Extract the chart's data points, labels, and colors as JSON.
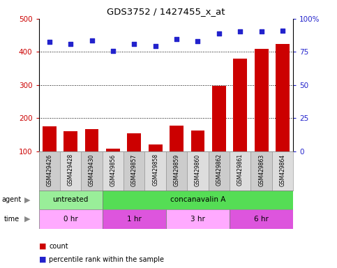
{
  "title": "GDS3752 / 1427455_x_at",
  "samples": [
    "GSM429426",
    "GSM429428",
    "GSM429430",
    "GSM429856",
    "GSM429857",
    "GSM429858",
    "GSM429859",
    "GSM429860",
    "GSM429862",
    "GSM429861",
    "GSM429863",
    "GSM429864"
  ],
  "counts": [
    175,
    160,
    168,
    108,
    155,
    122,
    178,
    163,
    298,
    380,
    410,
    425
  ],
  "percentile_ranks": [
    82.5,
    81.25,
    83.75,
    75.75,
    81.25,
    79.5,
    84.5,
    83.0,
    88.75,
    90.5,
    90.5,
    91.25
  ],
  "ylim_left": [
    100,
    500
  ],
  "ylim_right": [
    0,
    100
  ],
  "yticks_left": [
    100,
    200,
    300,
    400,
    500
  ],
  "yticks_right": [
    0,
    25,
    50,
    75,
    100
  ],
  "bar_color": "#cc0000",
  "scatter_color": "#2222cc",
  "agent_groups": [
    {
      "label": "untreated",
      "start": 0,
      "end": 3,
      "color": "#99ee99"
    },
    {
      "label": "concanavalin A",
      "start": 3,
      "end": 12,
      "color": "#55dd55"
    }
  ],
  "time_groups": [
    {
      "label": "0 hr",
      "start": 0,
      "end": 3,
      "color": "#ffaaff"
    },
    {
      "label": "1 hr",
      "start": 3,
      "end": 6,
      "color": "#dd55dd"
    },
    {
      "label": "3 hr",
      "start": 6,
      "end": 9,
      "color": "#ffaaff"
    },
    {
      "label": "6 hr",
      "start": 9,
      "end": 12,
      "color": "#dd55dd"
    }
  ],
  "legend_count_color": "#cc0000",
  "legend_scatter_color": "#2222cc",
  "bg_color": "#ffffff",
  "gridline_color": "#000000",
  "spine_color": "#000000",
  "cell_colors": [
    "#cccccc",
    "#dddddd"
  ]
}
